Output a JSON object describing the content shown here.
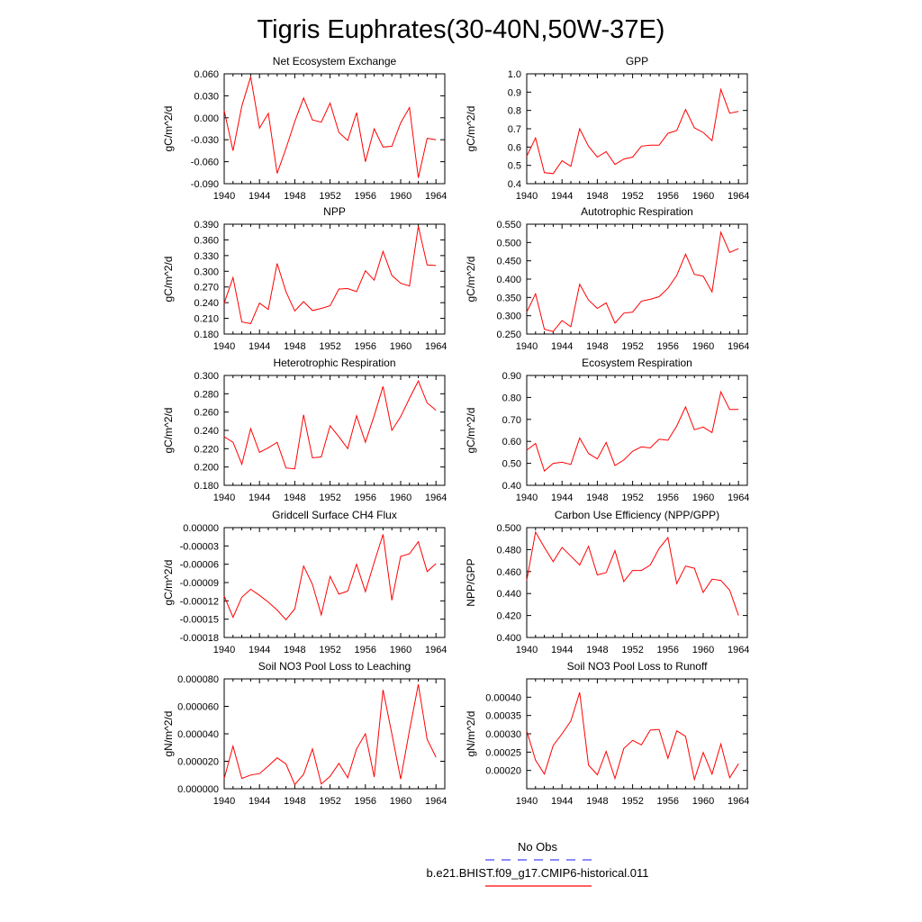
{
  "title": "Tigris Euphrates(30-40N,50W-37E)",
  "colors": {
    "model": "#ff0000",
    "obs": "#4444ff"
  },
  "legend": [
    {
      "label": "No Obs",
      "style": "dashed",
      "color": "#4444ff"
    },
    {
      "label": "b.e21.BHIST.f09_g17.CMIP6-historical.011",
      "style": "solid",
      "color": "#ff0000"
    }
  ],
  "chart_data": [
    {
      "type": "line",
      "title": "Net Ecosystem Exchange",
      "ylabel": "gC/m^2/d",
      "xlim": [
        1940,
        1965
      ],
      "xticks": [
        1940,
        1944,
        1948,
        1952,
        1956,
        1960,
        1964
      ],
      "xticklabels": [
        "1940",
        "1944",
        "1948",
        "1952",
        "1956",
        "1960",
        "1964"
      ],
      "ylim": [
        -0.09,
        0.06
      ],
      "yticks": [
        -0.09,
        -0.06,
        -0.03,
        0.0,
        0.03,
        0.06
      ],
      "yticklabels": [
        "-0.090",
        "-0.060",
        "-0.030",
        "0.000",
        "0.030",
        "0.060"
      ],
      "x": [
        1940,
        1941,
        1942,
        1943,
        1944,
        1945,
        1946,
        1947,
        1948,
        1949,
        1950,
        1951,
        1952,
        1953,
        1954,
        1955,
        1956,
        1957,
        1958,
        1959,
        1960,
        1961,
        1962,
        1963,
        1964
      ],
      "series": [
        {
          "values": [
            0.01,
            -0.045,
            0.016,
            0.056,
            -0.014,
            0.006,
            -0.076,
            -0.042,
            -0.005,
            0.027,
            -0.003,
            -0.006,
            0.02,
            -0.02,
            -0.031,
            0.007,
            -0.06,
            -0.015,
            -0.04,
            -0.039,
            -0.007,
            0.014,
            -0.082,
            -0.028,
            -0.03
          ]
        }
      ]
    },
    {
      "type": "line",
      "title": "GPP",
      "ylabel": "gC/m^2/d",
      "xlim": [
        1940,
        1965
      ],
      "xticks": [
        1940,
        1944,
        1948,
        1952,
        1956,
        1960,
        1964
      ],
      "xticklabels": [
        "1940",
        "1944",
        "1948",
        "1952",
        "1956",
        "1960",
        "1964"
      ],
      "ylim": [
        0.4,
        1.0
      ],
      "yticks": [
        0.4,
        0.5,
        0.6,
        0.7,
        0.8,
        0.9,
        1.0
      ],
      "yticklabels": [
        "0.4",
        "0.5",
        "0.6",
        "0.7",
        "0.8",
        "0.9",
        "1.0"
      ],
      "x": [
        1940,
        1941,
        1942,
        1943,
        1944,
        1945,
        1946,
        1947,
        1948,
        1949,
        1950,
        1951,
        1952,
        1953,
        1954,
        1955,
        1956,
        1957,
        1958,
        1959,
        1960,
        1961,
        1962,
        1963,
        1964
      ],
      "series": [
        {
          "values": [
            0.55,
            0.65,
            0.46,
            0.455,
            0.525,
            0.495,
            0.7,
            0.605,
            0.545,
            0.575,
            0.505,
            0.535,
            0.545,
            0.605,
            0.61,
            0.61,
            0.675,
            0.69,
            0.805,
            0.705,
            0.68,
            0.635,
            0.915,
            0.785,
            0.795
          ]
        }
      ]
    },
    {
      "type": "line",
      "title": "NPP",
      "ylabel": "gC/m^2/d",
      "xlim": [
        1940,
        1965
      ],
      "xticks": [
        1940,
        1944,
        1948,
        1952,
        1956,
        1960,
        1964
      ],
      "xticklabels": [
        "1940",
        "1944",
        "1948",
        "1952",
        "1956",
        "1960",
        "1964"
      ],
      "ylim": [
        0.18,
        0.39
      ],
      "yticks": [
        0.18,
        0.21,
        0.24,
        0.27,
        0.3,
        0.33,
        0.36,
        0.39
      ],
      "yticklabels": [
        "0.180",
        "0.210",
        "0.240",
        "0.270",
        "0.300",
        "0.330",
        "0.360",
        "0.390"
      ],
      "x": [
        1940,
        1941,
        1942,
        1943,
        1944,
        1945,
        1946,
        1947,
        1948,
        1949,
        1950,
        1951,
        1952,
        1953,
        1954,
        1955,
        1956,
        1957,
        1958,
        1959,
        1960,
        1961,
        1962,
        1963,
        1964
      ],
      "series": [
        {
          "values": [
            0.239,
            0.288,
            0.203,
            0.2,
            0.239,
            0.227,
            0.315,
            0.261,
            0.224,
            0.242,
            0.225,
            0.229,
            0.234,
            0.266,
            0.267,
            0.261,
            0.301,
            0.283,
            0.338,
            0.292,
            0.277,
            0.272,
            0.386,
            0.312,
            0.311
          ]
        }
      ]
    },
    {
      "type": "line",
      "title": "Autotrophic Respiration",
      "ylabel": "gC/m^2/d",
      "xlim": [
        1940,
        1965
      ],
      "xticks": [
        1940,
        1944,
        1948,
        1952,
        1956,
        1960,
        1964
      ],
      "xticklabels": [
        "1940",
        "1944",
        "1948",
        "1952",
        "1956",
        "1960",
        "1964"
      ],
      "ylim": [
        0.25,
        0.55
      ],
      "yticks": [
        0.25,
        0.3,
        0.35,
        0.4,
        0.45,
        0.5,
        0.55
      ],
      "yticklabels": [
        "0.250",
        "0.300",
        "0.350",
        "0.400",
        "0.450",
        "0.500",
        "0.550"
      ],
      "x": [
        1940,
        1941,
        1942,
        1943,
        1944,
        1945,
        1946,
        1947,
        1948,
        1949,
        1950,
        1951,
        1952,
        1953,
        1954,
        1955,
        1956,
        1957,
        1958,
        1959,
        1960,
        1961,
        1962,
        1963,
        1964
      ],
      "series": [
        {
          "values": [
            0.31,
            0.36,
            0.263,
            0.257,
            0.287,
            0.27,
            0.386,
            0.343,
            0.32,
            0.335,
            0.28,
            0.307,
            0.31,
            0.34,
            0.345,
            0.352,
            0.375,
            0.41,
            0.468,
            0.413,
            0.408,
            0.365,
            0.528,
            0.473,
            0.483
          ]
        }
      ]
    },
    {
      "type": "line",
      "title": "Heterotrophic Respiration",
      "ylabel": "gC/m^2/d",
      "xlim": [
        1940,
        1965
      ],
      "xticks": [
        1940,
        1944,
        1948,
        1952,
        1956,
        1960,
        1964
      ],
      "xticklabels": [
        "1940",
        "1944",
        "1948",
        "1952",
        "1956",
        "1960",
        "1964"
      ],
      "ylim": [
        0.18,
        0.3
      ],
      "yticks": [
        0.18,
        0.2,
        0.22,
        0.24,
        0.26,
        0.28,
        0.3
      ],
      "yticklabels": [
        "0.180",
        "0.200",
        "0.220",
        "0.240",
        "0.260",
        "0.280",
        "0.300"
      ],
      "x": [
        1940,
        1941,
        1942,
        1943,
        1944,
        1945,
        1946,
        1947,
        1948,
        1949,
        1950,
        1951,
        1952,
        1953,
        1954,
        1955,
        1956,
        1957,
        1958,
        1959,
        1960,
        1961,
        1962,
        1963,
        1964
      ],
      "series": [
        {
          "values": [
            0.233,
            0.227,
            0.203,
            0.242,
            0.216,
            0.221,
            0.227,
            0.199,
            0.198,
            0.257,
            0.21,
            0.211,
            0.245,
            0.233,
            0.22,
            0.256,
            0.227,
            0.256,
            0.288,
            0.24,
            0.255,
            0.275,
            0.294,
            0.27,
            0.262
          ]
        }
      ]
    },
    {
      "type": "line",
      "title": "Ecosystem Respiration",
      "ylabel": "gC/m^2/d",
      "xlim": [
        1940,
        1965
      ],
      "xticks": [
        1940,
        1944,
        1948,
        1952,
        1956,
        1960,
        1964
      ],
      "xticklabels": [
        "1940",
        "1944",
        "1948",
        "1952",
        "1956",
        "1960",
        "1964"
      ],
      "ylim": [
        0.4,
        0.9
      ],
      "yticks": [
        0.4,
        0.5,
        0.6,
        0.7,
        0.8,
        0.9
      ],
      "yticklabels": [
        "0.40",
        "0.50",
        "0.60",
        "0.70",
        "0.80",
        "0.90"
      ],
      "x": [
        1940,
        1941,
        1942,
        1943,
        1944,
        1945,
        1946,
        1947,
        1948,
        1949,
        1950,
        1951,
        1952,
        1953,
        1954,
        1955,
        1956,
        1957,
        1958,
        1959,
        1960,
        1961,
        1962,
        1963,
        1964
      ],
      "series": [
        {
          "values": [
            0.56,
            0.59,
            0.465,
            0.5,
            0.505,
            0.495,
            0.615,
            0.545,
            0.52,
            0.595,
            0.49,
            0.515,
            0.555,
            0.575,
            0.57,
            0.61,
            0.605,
            0.67,
            0.757,
            0.653,
            0.665,
            0.64,
            0.825,
            0.745,
            0.745
          ]
        }
      ]
    },
    {
      "type": "line",
      "title": "Gridcell Surface CH4 Flux",
      "ylabel": "gC/m^2/d",
      "xlim": [
        1940,
        1965
      ],
      "xticks": [
        1940,
        1944,
        1948,
        1952,
        1956,
        1960,
        1964
      ],
      "xticklabels": [
        "1940",
        "1944",
        "1948",
        "1952",
        "1956",
        "1960",
        "1964"
      ],
      "ylim": [
        -0.00018,
        0.0
      ],
      "yticks": [
        -0.00018,
        -0.00015,
        -0.00012,
        -9e-05,
        -6e-05,
        -3e-05,
        0.0
      ],
      "yticklabels": [
        "-0.00018",
        "-0.00015",
        "-0.00012",
        "-0.00009",
        "-0.00006",
        "-0.00003",
        "0.00000"
      ],
      "x": [
        1940,
        1941,
        1942,
        1943,
        1944,
        1945,
        1946,
        1947,
        1948,
        1949,
        1950,
        1951,
        1952,
        1953,
        1954,
        1955,
        1956,
        1957,
        1958,
        1959,
        1960,
        1961,
        1962,
        1963,
        1964
      ],
      "series": [
        {
          "values": [
            -0.000112,
            -0.000147,
            -0.000114,
            -0.000101,
            -0.000111,
            -0.000122,
            -0.000135,
            -0.000151,
            -0.000133,
            -6.3e-05,
            -9.3e-05,
            -0.000143,
            -8e-05,
            -0.000109,
            -0.000104,
            -6e-05,
            -0.000105,
            -5.7e-05,
            -1.1e-05,
            -0.000119,
            -4.7e-05,
            -4.3e-05,
            -2.3e-05,
            -7.2e-05,
            -5.9e-05
          ]
        }
      ]
    },
    {
      "type": "line",
      "title": "Carbon Use Efficiency (NPP/GPP)",
      "ylabel": "NPP/GPP",
      "xlim": [
        1940,
        1965
      ],
      "xticks": [
        1940,
        1944,
        1948,
        1952,
        1956,
        1960,
        1964
      ],
      "xticklabels": [
        "1940",
        "1944",
        "1948",
        "1952",
        "1956",
        "1960",
        "1964"
      ],
      "ylim": [
        0.4,
        0.5
      ],
      "yticks": [
        0.4,
        0.42,
        0.44,
        0.46,
        0.48,
        0.5
      ],
      "yticklabels": [
        "0.400",
        "0.420",
        "0.440",
        "0.460",
        "0.480",
        "0.500"
      ],
      "x": [
        1940,
        1941,
        1942,
        1943,
        1944,
        1945,
        1946,
        1947,
        1948,
        1949,
        1950,
        1951,
        1952,
        1953,
        1954,
        1955,
        1956,
        1957,
        1958,
        1959,
        1960,
        1961,
        1962,
        1963,
        1964
      ],
      "series": [
        {
          "values": [
            0.452,
            0.496,
            0.482,
            0.469,
            0.482,
            0.474,
            0.466,
            0.483,
            0.457,
            0.459,
            0.479,
            0.451,
            0.461,
            0.461,
            0.466,
            0.481,
            0.491,
            0.449,
            0.465,
            0.463,
            0.441,
            0.453,
            0.452,
            0.443,
            0.42
          ]
        }
      ]
    },
    {
      "type": "line",
      "title": "Soil NO3 Pool Loss to Leaching",
      "ylabel": "gN/m^2/d",
      "xlim": [
        1940,
        1965
      ],
      "xticks": [
        1940,
        1944,
        1948,
        1952,
        1956,
        1960,
        1964
      ],
      "xticklabels": [
        "1940",
        "1944",
        "1948",
        "1952",
        "1956",
        "1960",
        "1964"
      ],
      "ylim": [
        0.0,
        8e-05
      ],
      "yticks": [
        0.0,
        2e-05,
        4e-05,
        6e-05,
        8e-05
      ],
      "yticklabels": [
        "0.000000",
        "0.000020",
        "0.000040",
        "0.000060",
        "0.000080"
      ],
      "x": [
        1940,
        1941,
        1942,
        1943,
        1944,
        1945,
        1946,
        1947,
        1948,
        1949,
        1950,
        1951,
        1952,
        1953,
        1954,
        1955,
        1956,
        1957,
        1958,
        1959,
        1960,
        1961,
        1962,
        1963,
        1964
      ],
      "series": [
        {
          "values": [
            7.5e-06,
            3.1e-05,
            7.5e-06,
            1e-05,
            1.1e-05,
            1.65e-05,
            2.25e-05,
            1.8e-05,
            3e-06,
            1.05e-05,
            2.9e-05,
            3.5e-06,
            9e-06,
            1.85e-05,
            8e-06,
            2.9e-05,
            4e-05,
            8.5e-06,
            7.2e-05,
            4e-05,
            7e-06,
            4.25e-05,
            7.6e-05,
            3.6e-05,
            2.3e-05
          ]
        }
      ]
    },
    {
      "type": "line",
      "title": "Soil NO3 Pool Loss to Runoff",
      "ylabel": "gN/m^2/d",
      "xlim": [
        1940,
        1965
      ],
      "xticks": [
        1940,
        1944,
        1948,
        1952,
        1956,
        1960,
        1964
      ],
      "xticklabels": [
        "1940",
        "1944",
        "1948",
        "1952",
        "1956",
        "1960",
        "1964"
      ],
      "ylim": [
        0.00015,
        0.00045
      ],
      "yticks": [
        0.0002,
        0.00025,
        0.0003,
        0.00035,
        0.0004
      ],
      "yticklabels": [
        "0.00020",
        "0.00025",
        "0.00030",
        "0.00035",
        "0.00040"
      ],
      "x": [
        1940,
        1941,
        1942,
        1943,
        1944,
        1945,
        1946,
        1947,
        1948,
        1949,
        1950,
        1951,
        1952,
        1953,
        1954,
        1955,
        1956,
        1957,
        1958,
        1959,
        1960,
        1961,
        1962,
        1963,
        1964
      ],
      "series": [
        {
          "values": [
            0.000308,
            0.000228,
            0.00019,
            0.000268,
            0.0003,
            0.000335,
            0.000413,
            0.000215,
            0.000188,
            0.000252,
            0.000178,
            0.00026,
            0.000282,
            0.00027,
            0.00031,
            0.000312,
            0.000233,
            0.000308,
            0.000293,
            0.000175,
            0.000249,
            0.00019,
            0.000272,
            0.00018,
            0.000218
          ]
        }
      ]
    }
  ]
}
